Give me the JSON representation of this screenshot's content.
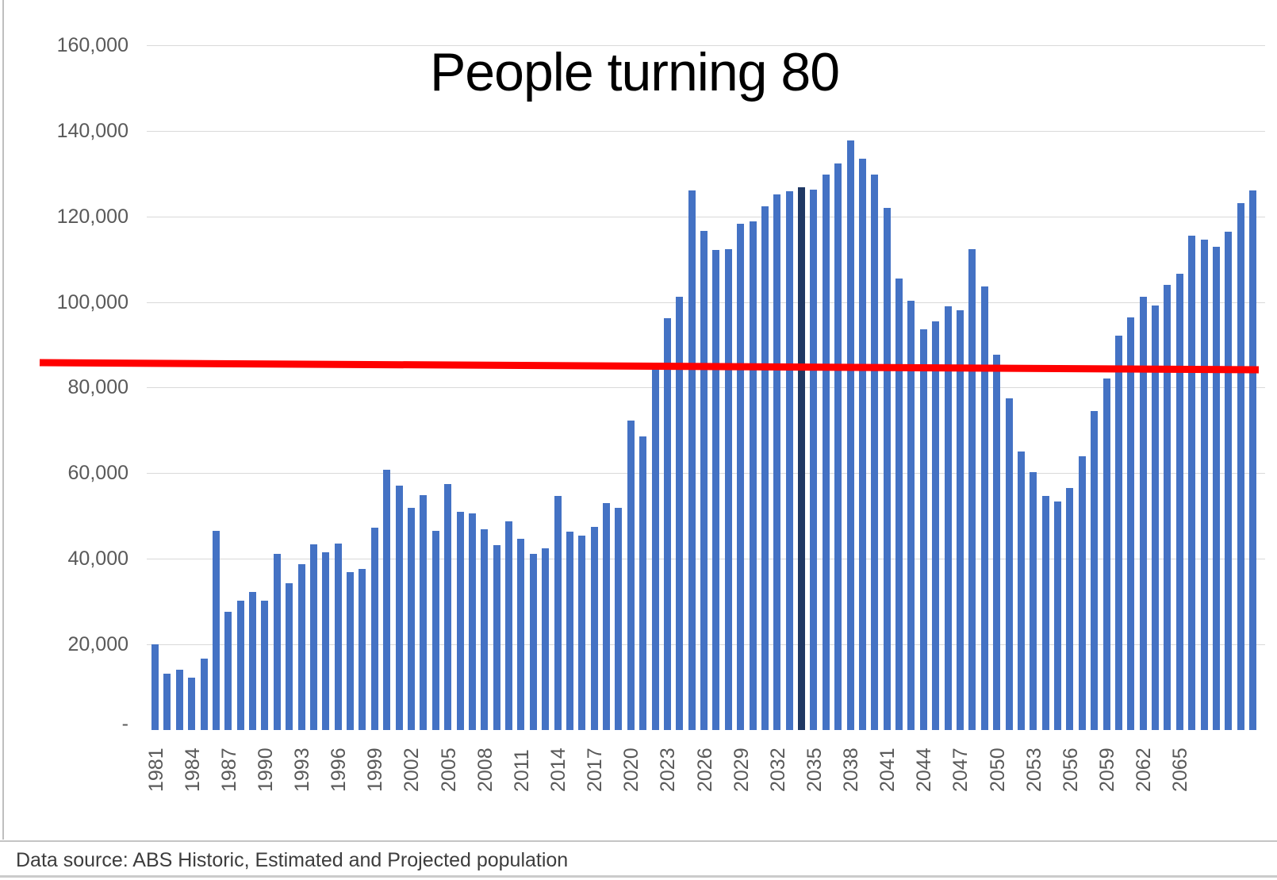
{
  "title": "People turning 80",
  "footer": {
    "text": "Data source: ABS Historic, Estimated and Projected population"
  },
  "colors": {
    "bar": "#4472C4",
    "highlight_bar": "#1F3864",
    "reference_line": "#FF0000",
    "gridline": "#D9D9D9",
    "axis_text": "#595959",
    "border": "#BFBFBF"
  },
  "chart_data": {
    "type": "bar",
    "title": "People turning 80",
    "xlabel": "",
    "ylabel": "",
    "ylim": [
      0,
      160000
    ],
    "ytick_interval": 20000,
    "grid": true,
    "legend": false,
    "ytick_labels": [
      "160,000",
      "140,000",
      "120,000",
      "100,000",
      "80,000",
      "60,000",
      "40,000",
      "20,000",
      "-"
    ],
    "xtick_labels": [
      "1981",
      "1984",
      "1987",
      "1990",
      "1993",
      "1996",
      "1999",
      "2002",
      "2005",
      "2008",
      "2011",
      "2014",
      "2017",
      "2020",
      "2023",
      "2026",
      "2029",
      "2032",
      "2035",
      "2038",
      "2041",
      "2044",
      "2047",
      "2050",
      "2053",
      "2056",
      "2059",
      "2062",
      "2065"
    ],
    "reference_line": {
      "value": 85000,
      "color": "#FF0000"
    },
    "highlight_year": 2034,
    "years": [
      1981,
      1982,
      1983,
      1984,
      1985,
      1986,
      1987,
      1988,
      1989,
      1990,
      1991,
      1992,
      1993,
      1994,
      1995,
      1996,
      1997,
      1998,
      1999,
      2000,
      2001,
      2002,
      2003,
      2004,
      2005,
      2006,
      2007,
      2008,
      2009,
      2010,
      2011,
      2012,
      2013,
      2014,
      2015,
      2016,
      2017,
      2018,
      2019,
      2020,
      2021,
      2022,
      2023,
      2024,
      2025,
      2026,
      2027,
      2028,
      2029,
      2030,
      2031,
      2032,
      2033,
      2034,
      2035,
      2036,
      2037,
      2038,
      2039,
      2040,
      2041,
      2042,
      2043,
      2044,
      2045,
      2046,
      2047,
      2048,
      2049,
      2050,
      2051,
      2052,
      2053,
      2054,
      2055,
      2056,
      2057,
      2058,
      2059,
      2060,
      2061,
      2062,
      2063,
      2064,
      2065,
      2066,
      2067,
      2068,
      2069,
      2070,
      2071
    ],
    "values": [
      20000,
      13200,
      14100,
      12200,
      16600,
      46500,
      27700,
      30300,
      32200,
      30200,
      41100,
      34300,
      38800,
      43400,
      41500,
      43500,
      36900,
      37700,
      47200,
      60800,
      57100,
      51900,
      54900,
      46600,
      57400,
      50900,
      50600,
      46900,
      43200,
      48700,
      44600,
      41200,
      42500,
      54600,
      46400,
      45400,
      47400,
      53000,
      51900,
      72300,
      68500,
      85000,
      96300,
      101300,
      126000,
      116600,
      112100,
      112300,
      118200,
      118900,
      122300,
      125200,
      125900,
      126800,
      126200,
      129800,
      132400,
      137700,
      133500,
      129700,
      122000,
      105500,
      100300,
      93600,
      95400,
      99000,
      98000,
      112300,
      103700,
      87700,
      77400,
      65000,
      60200,
      54700,
      53400,
      56600,
      64000,
      74500,
      82200,
      92200,
      96400,
      101200,
      99100,
      104000,
      106600,
      115500,
      114600,
      112800,
      116400,
      123100,
      126000
    ]
  }
}
